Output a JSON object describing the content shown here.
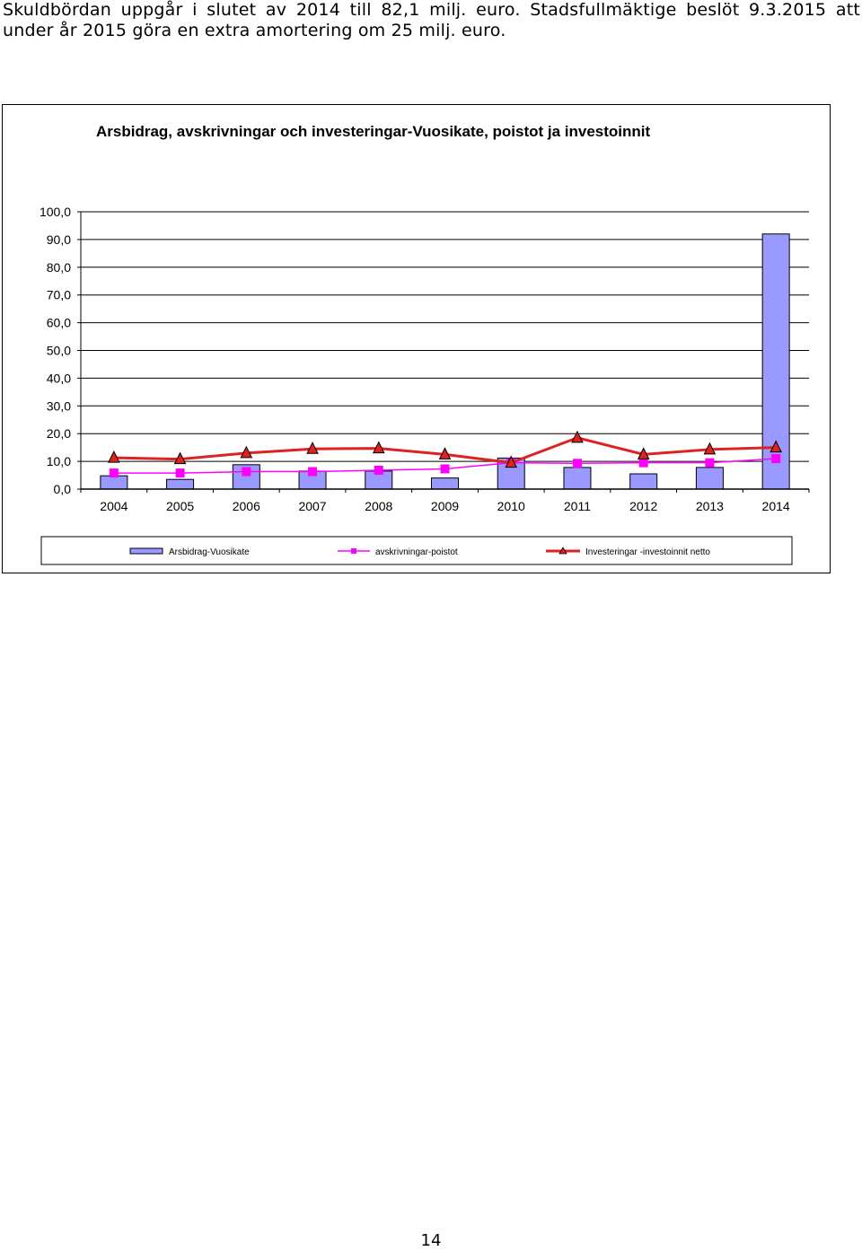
{
  "intro": {
    "line1": "Skuldbördan uppgår i slutet av 2014 till 82,1 milj. euro. Stadsfullmäktige beslöt 9.3.2015 att",
    "line2": "under år 2015 göra en extra amortering om 25 milj. euro."
  },
  "page_number": "14",
  "colors": {
    "bar": "#9999ff",
    "depreciation": "#ff00ff",
    "investment": "#dd2222",
    "grid": "#000000"
  },
  "chart_data": {
    "type": "bar",
    "title": "Arsbidrag, avskrivningar och investeringar-Vuosikate, poistot ja investoinnit",
    "xlabel": "",
    "ylabel": "",
    "ylim": [
      0,
      100
    ],
    "yticks": [
      "0,0",
      "10,0",
      "20,0",
      "30,0",
      "40,0",
      "50,0",
      "60,0",
      "70,0",
      "80,0",
      "90,0",
      "100,0"
    ],
    "categories": [
      "2004",
      "2005",
      "2006",
      "2007",
      "2008",
      "2009",
      "2010",
      "2011",
      "2012",
      "2013",
      "2014"
    ],
    "grid": true,
    "legend_position": "bottom",
    "series": [
      {
        "name": "Arsbidrag-Vuosikate",
        "type": "bar",
        "values": [
          4.8,
          3.5,
          8.8,
          6.5,
          6.5,
          4.0,
          11.2,
          7.8,
          5.5,
          7.8,
          92.0
        ]
      },
      {
        "name": "avskrivningar-poistot",
        "type": "line",
        "marker": "square",
        "values": [
          5.8,
          5.8,
          6.3,
          6.3,
          6.8,
          7.3,
          9.5,
          9.3,
          9.5,
          9.5,
          11.0
        ]
      },
      {
        "name": "Investeringar -investoinnit netto",
        "type": "line",
        "marker": "triangle",
        "values": [
          11.3,
          10.8,
          13.0,
          14.5,
          14.7,
          12.5,
          9.5,
          18.5,
          12.5,
          14.3,
          15.0
        ]
      }
    ]
  }
}
